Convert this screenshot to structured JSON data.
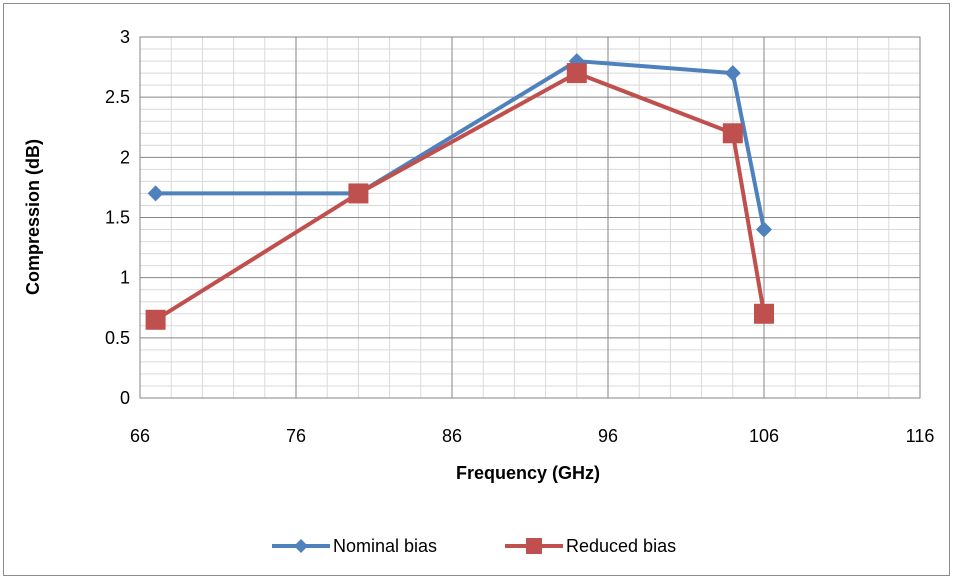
{
  "chart_data": {
    "type": "line",
    "xlabel": "Frequency (GHz)",
    "ylabel": "Compression (dB)",
    "xlim": [
      66,
      116
    ],
    "ylim": [
      0,
      3
    ],
    "x_major_ticks": [
      66,
      76,
      86,
      96,
      106,
      116
    ],
    "y_major_ticks": [
      0,
      0.5,
      1,
      1.5,
      2,
      2.5,
      3
    ],
    "x_tick_labels": [
      "66",
      "76",
      "86",
      "96",
      "106",
      "116"
    ],
    "y_tick_labels": [
      "0",
      "0.5",
      "1",
      "1.5",
      "2",
      "2.5",
      "3"
    ],
    "grid": true,
    "legend_position": "bottom",
    "series": [
      {
        "name": "Nominal bias",
        "color": "#4f81bd",
        "marker": "diamond",
        "x": [
          67,
          80,
          94,
          104,
          106
        ],
        "y": [
          1.7,
          1.7,
          2.8,
          2.7,
          1.4
        ]
      },
      {
        "name": "Reduced bias",
        "color": "#c0504d",
        "marker": "square",
        "x": [
          67,
          80,
          94,
          104,
          106
        ],
        "y": [
          0.65,
          1.7,
          2.7,
          2.2,
          0.7
        ]
      }
    ]
  }
}
